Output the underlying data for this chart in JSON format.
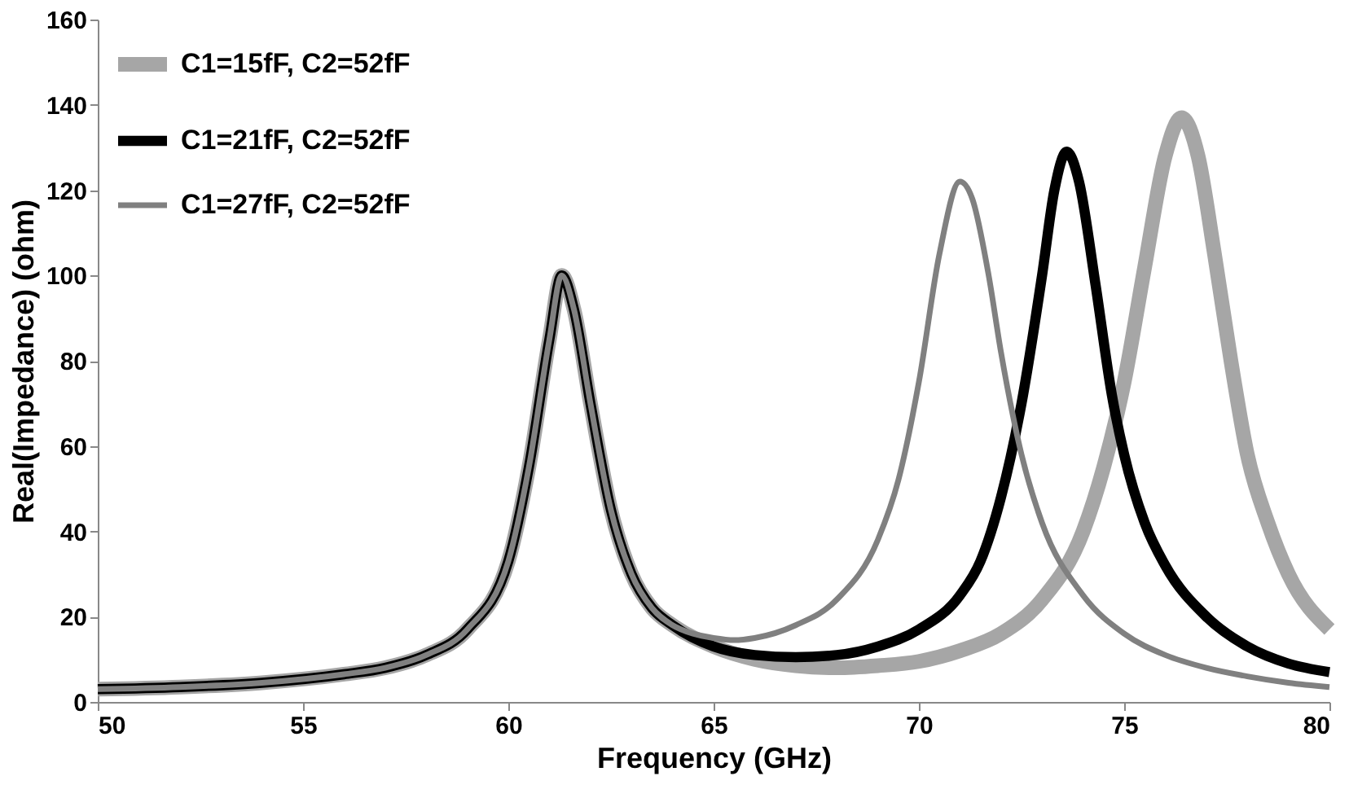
{
  "chart_data": {
    "type": "line",
    "xlabel": "Frequency (GHz)",
    "ylabel": "Real(Impedance) (ohm)",
    "xlim": [
      50,
      80
    ],
    "xticks": [
      50,
      55,
      60,
      65,
      70,
      75,
      80
    ],
    "ylim": [
      0,
      160
    ],
    "yticks": [
      0,
      20,
      40,
      60,
      80,
      100,
      120,
      140,
      160
    ],
    "grid": false,
    "legend": "top left",
    "marker": "none",
    "line_style": "solid",
    "series": [
      {
        "name": "C1=15fF, C2=52fF",
        "color": "#a6a6a6",
        "x": [
          50,
          52,
          54,
          56,
          57,
          58,
          59,
          60,
          60.5,
          61,
          61.3,
          61.6,
          62,
          62.5,
          63,
          63.5,
          64,
          65,
          66,
          67,
          68,
          69,
          70,
          71,
          72,
          73,
          74,
          74.5,
          75,
          75.5,
          76,
          76.4,
          76.8,
          77.2,
          77.6,
          78,
          78.5,
          79,
          80
        ],
        "values": [
          3,
          3.5,
          4.5,
          6.5,
          8,
          11,
          17,
          33,
          55,
          85,
          100,
          92,
          70,
          45,
          30,
          22,
          18,
          13,
          10,
          8.5,
          8,
          8.5,
          9.5,
          12,
          16,
          24,
          40,
          55,
          75,
          102,
          128,
          137,
          128,
          105,
          80,
          58,
          42,
          30,
          17
        ]
      },
      {
        "name": "C1=21fF, C2=52fF",
        "color": "#000000",
        "x": [
          50,
          52,
          54,
          56,
          57,
          58,
          59,
          60,
          60.5,
          61,
          61.3,
          61.6,
          62,
          62.5,
          63,
          63.5,
          64,
          65,
          66,
          67,
          68,
          69,
          70,
          71,
          71.5,
          72,
          72.5,
          73,
          73.3,
          73.6,
          73.9,
          74.3,
          74.7,
          75,
          75.5,
          76,
          77,
          78,
          79,
          80
        ],
        "values": [
          3,
          3.5,
          4.5,
          6.5,
          8,
          11,
          17,
          33,
          55,
          85,
          100,
          92,
          70,
          45,
          30,
          22,
          18,
          13,
          11,
          10.5,
          11,
          13,
          17,
          25,
          33,
          48,
          70,
          100,
          120,
          129,
          122,
          98,
          72,
          58,
          42,
          32,
          20,
          13,
          9,
          7
        ]
      },
      {
        "name": "C1=27fF, C2=52fF",
        "color": "#808080",
        "x": [
          50,
          52,
          54,
          56,
          57,
          58,
          59,
          60,
          60.5,
          61,
          61.3,
          61.6,
          62,
          62.5,
          63,
          63.5,
          64,
          64.5,
          65,
          65.5,
          66,
          67,
          68,
          69,
          69.5,
          70,
          70.5,
          71,
          71.3,
          71.7,
          72,
          72.5,
          73,
          74,
          75,
          76,
          77,
          78,
          79,
          80
        ],
        "values": [
          3,
          3.5,
          4.5,
          6.5,
          8,
          11,
          17,
          33,
          55,
          85,
          100,
          92,
          70,
          45,
          30,
          22,
          18,
          16,
          15,
          14.5,
          15,
          18,
          24,
          38,
          52,
          75,
          105,
          122,
          118,
          100,
          82,
          58,
          42,
          25,
          16,
          11,
          8,
          6,
          4.5,
          3.5
        ]
      }
    ]
  }
}
